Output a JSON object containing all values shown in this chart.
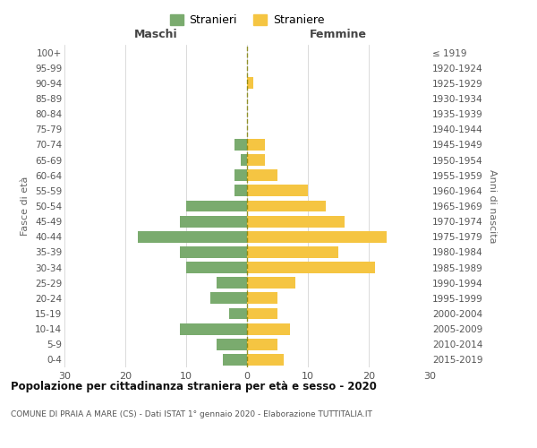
{
  "age_groups": [
    "0-4",
    "5-9",
    "10-14",
    "15-19",
    "20-24",
    "25-29",
    "30-34",
    "35-39",
    "40-44",
    "45-49",
    "50-54",
    "55-59",
    "60-64",
    "65-69",
    "70-74",
    "75-79",
    "80-84",
    "85-89",
    "90-94",
    "95-99",
    "100+"
  ],
  "birth_years": [
    "2015-2019",
    "2010-2014",
    "2005-2009",
    "2000-2004",
    "1995-1999",
    "1990-1994",
    "1985-1989",
    "1980-1984",
    "1975-1979",
    "1970-1974",
    "1965-1969",
    "1960-1964",
    "1955-1959",
    "1950-1954",
    "1945-1949",
    "1940-1944",
    "1935-1939",
    "1930-1934",
    "1925-1929",
    "1920-1924",
    "≤ 1919"
  ],
  "males": [
    4,
    5,
    11,
    3,
    6,
    5,
    10,
    11,
    18,
    11,
    10,
    2,
    2,
    1,
    2,
    0,
    0,
    0,
    0,
    0,
    0
  ],
  "females": [
    6,
    5,
    7,
    5,
    5,
    8,
    21,
    15,
    23,
    16,
    13,
    10,
    5,
    3,
    3,
    0,
    0,
    0,
    1,
    0,
    0
  ],
  "male_color": "#7aab6e",
  "female_color": "#f5c542",
  "background_color": "#ffffff",
  "grid_color": "#cccccc",
  "title": "Popolazione per cittadinanza straniera per età e sesso - 2020",
  "subtitle": "COMUNE DI PRAIA A MARE (CS) - Dati ISTAT 1° gennaio 2020 - Elaborazione TUTTITALIA.IT",
  "legend_male": "Stranieri",
  "legend_female": "Straniere",
  "xlim": 30,
  "xlabel_left": "Maschi",
  "xlabel_right": "Femmine",
  "ylabel_left": "Fasce di età",
  "ylabel_right": "Anni di nascita"
}
